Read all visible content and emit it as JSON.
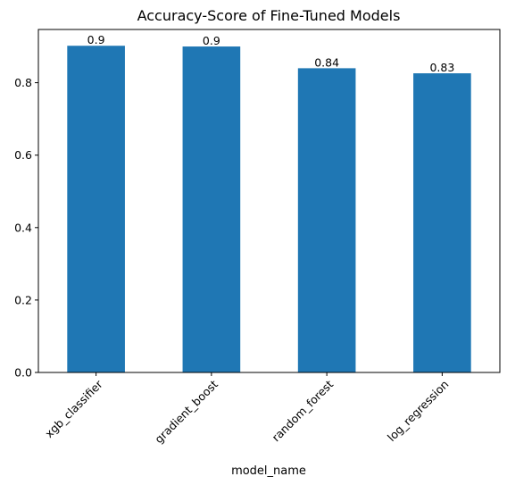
{
  "chart_data": {
    "type": "bar",
    "title": "Accuracy-Score of Fine-Tuned Models",
    "xlabel": "model_name",
    "ylabel": "",
    "categories": [
      "xgb_classifier",
      "gradient_boost",
      "random_forest",
      "log_regression"
    ],
    "values": [
      0.902,
      0.9,
      0.84,
      0.826
    ],
    "data_labels": [
      "0.9",
      "0.9",
      "0.84",
      "0.83"
    ],
    "yticks": [
      0.0,
      0.2,
      0.4,
      0.6,
      0.8
    ],
    "ytick_labels": [
      "0.0",
      "0.2",
      "0.4",
      "0.6",
      "0.8"
    ],
    "ylim": [
      0,
      0.947
    ],
    "grid": false,
    "bar_color": "#1f77b4"
  }
}
